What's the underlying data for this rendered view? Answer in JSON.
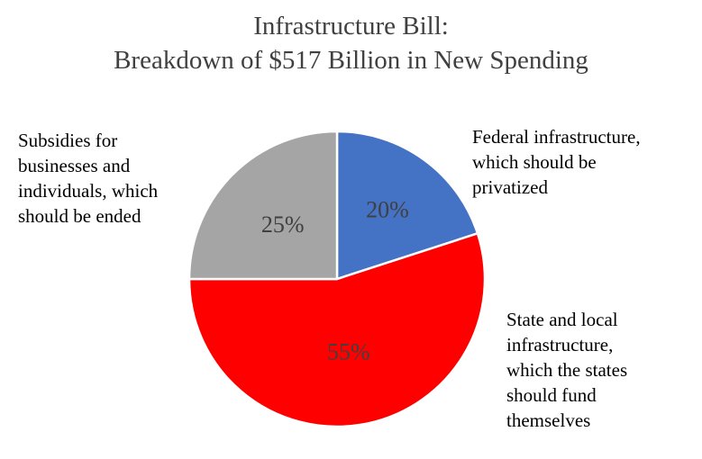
{
  "chart_data": {
    "type": "pie",
    "title": [
      "Infrastructure Bill:",
      "Breakdown of $517 Billion in New Spending"
    ],
    "slices": [
      {
        "label_lines": [
          "Federal infrastructure,",
          "which should be",
          "privatized"
        ],
        "value": 20,
        "value_label": "20%",
        "color": "#4472c4"
      },
      {
        "label_lines": [
          "State and local",
          "infrastructure,",
          "which the states",
          "should fund",
          "themselves"
        ],
        "value": 55,
        "value_label": "55%",
        "color": "#ff0000"
      },
      {
        "label_lines": [
          "Subsidies for",
          "businesses and",
          "individuals, which",
          "should be ended"
        ],
        "value": 25,
        "value_label": "25%",
        "color": "#a5a5a5"
      }
    ],
    "start_angle": "12 o'clock",
    "direction": "clockwise",
    "legend": "none"
  }
}
